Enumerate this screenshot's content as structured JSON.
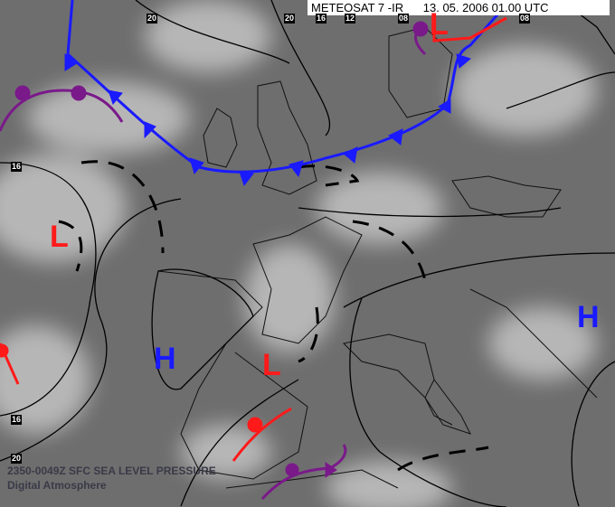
{
  "header": {
    "satellite": "METEOSAT 7 -IR",
    "datetime": "13. 05. 2006 01.00 UTC"
  },
  "caption": {
    "line1": "2350-0049Z SFC SEA LEVEL PRESSURE",
    "line2": "Digital Atmosphere"
  },
  "isobar_labels": [
    "20",
    "20",
    "16",
    "12",
    "08",
    "08",
    "16",
    "16",
    "20"
  ],
  "pressure_systems": [
    {
      "label": "L",
      "color": "#ff1a1a"
    },
    {
      "label": "L",
      "color": "#ff1a1a"
    },
    {
      "label": "L",
      "color": "#ff1a1a"
    },
    {
      "label": "H",
      "color": "#1a1aff"
    },
    {
      "label": "H",
      "color": "#1a1aff"
    }
  ],
  "colors": {
    "cold_front": "#1a1aff",
    "warm_front": "#ff1a1a",
    "occluded_front": "#7a1a8a",
    "isobar": "#000000",
    "trough": "#000000"
  }
}
